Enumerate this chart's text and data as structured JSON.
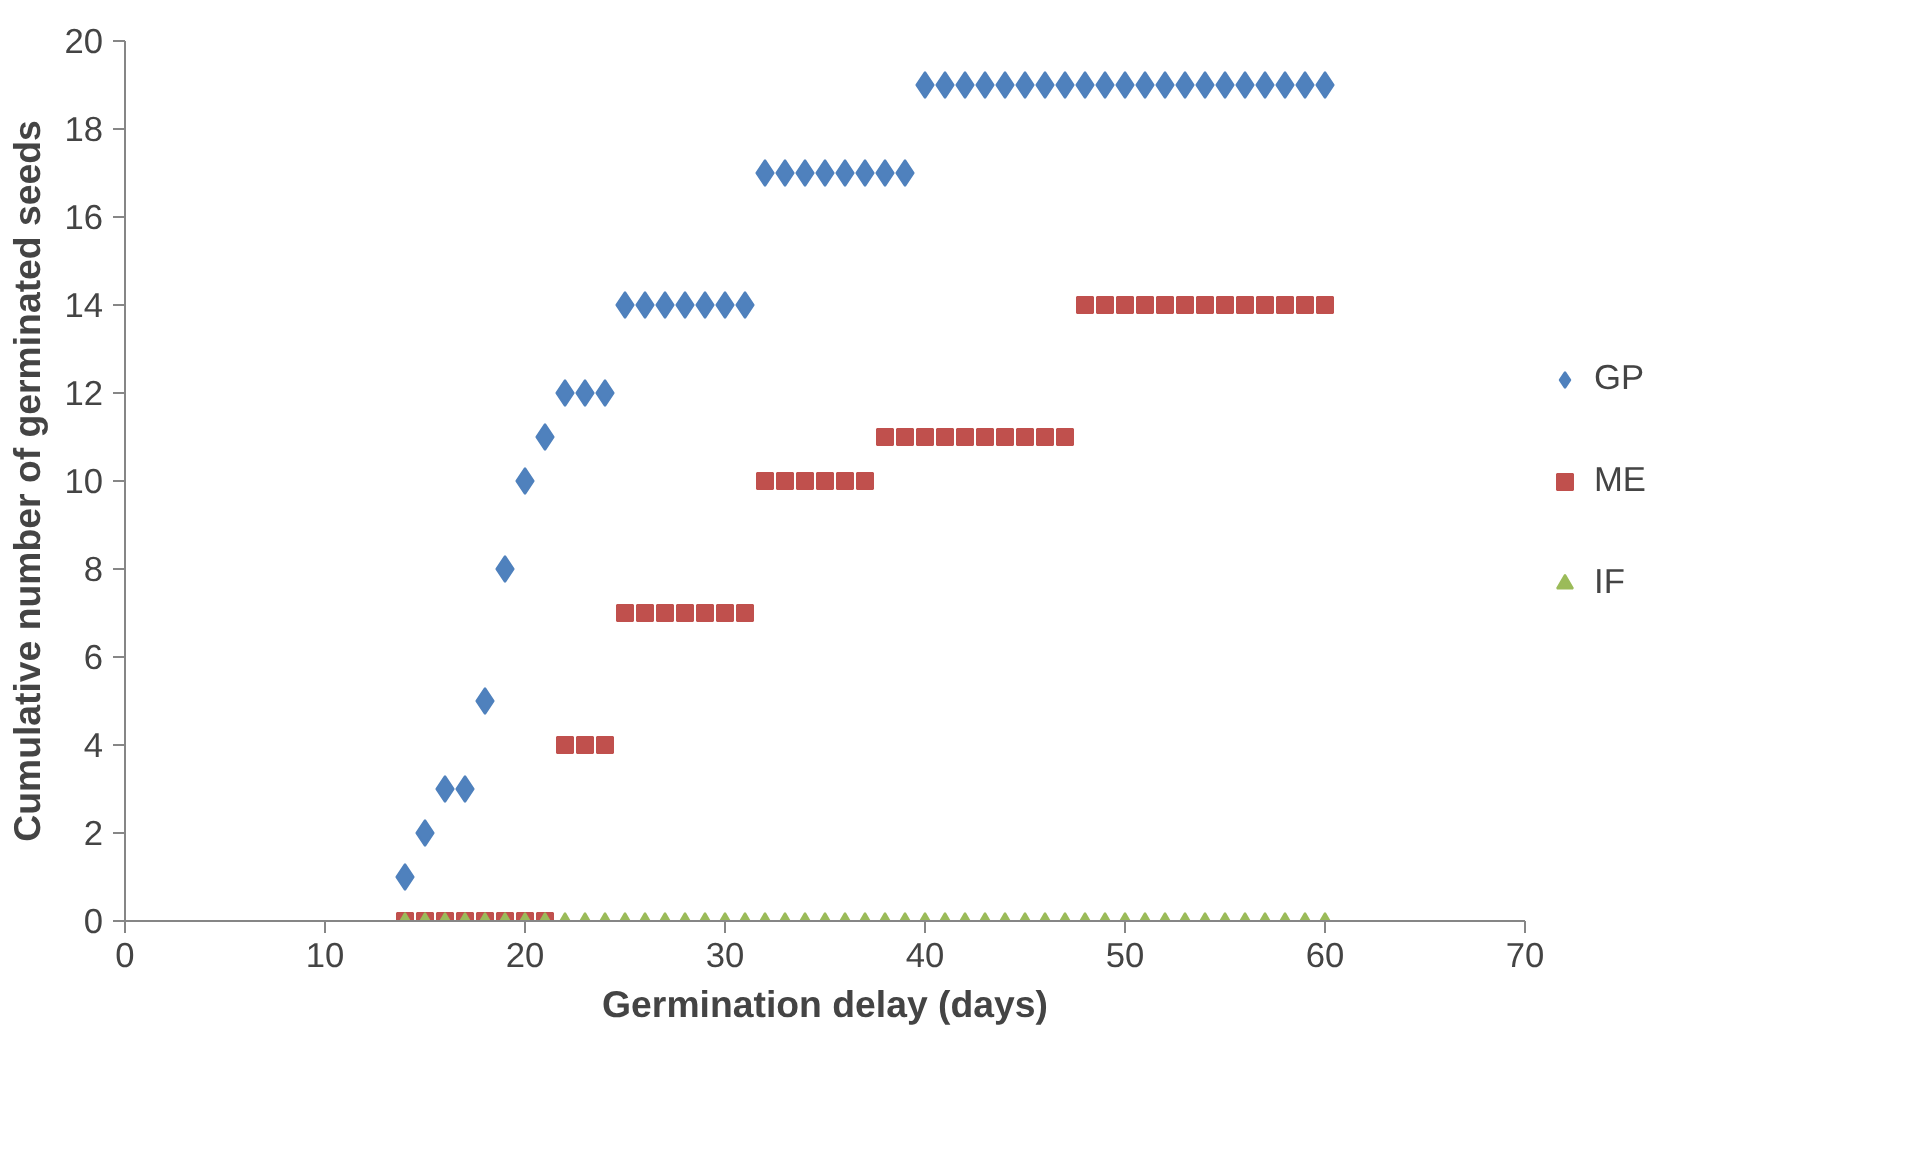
{
  "chart_data": {
    "type": "scatter",
    "xlabel": "Germination delay (days)",
    "ylabel": "Cumulative number of germinated seeds",
    "xlim": [
      0,
      70
    ],
    "xticks": [
      0,
      10,
      20,
      30,
      40,
      50,
      60,
      70
    ],
    "ylim": [
      0,
      20
    ],
    "yticks": [
      0,
      2,
      4,
      6,
      8,
      10,
      12,
      14,
      16,
      18,
      20
    ],
    "grid": false,
    "legend": "right",
    "series": [
      {
        "name": "GP",
        "color": "#4f81bd",
        "marker": "diamond",
        "x": [
          14,
          15,
          16,
          17,
          18,
          19,
          20,
          21,
          22,
          23,
          24,
          25,
          26,
          27,
          28,
          29,
          30,
          31,
          32,
          33,
          34,
          35,
          36,
          37,
          38,
          39,
          40,
          41,
          42,
          43,
          44,
          45,
          46,
          47,
          48,
          49,
          50,
          51,
          52,
          53,
          54,
          55,
          56,
          57,
          58,
          59,
          60
        ],
        "values": [
          1,
          2,
          3,
          3,
          5,
          8,
          10,
          11,
          12,
          12,
          12,
          14,
          14,
          14,
          14,
          14,
          14,
          14,
          17,
          17,
          17,
          17,
          17,
          17,
          17,
          17,
          19,
          19,
          19,
          19,
          19,
          19,
          19,
          19,
          19,
          19,
          19,
          19,
          19,
          19,
          19,
          19,
          19,
          19,
          19,
          19,
          19
        ]
      },
      {
        "name": "ME",
        "color": "#c0504d",
        "marker": "square",
        "x": [
          14,
          15,
          16,
          17,
          18,
          19,
          20,
          21,
          22,
          23,
          24,
          25,
          26,
          27,
          28,
          29,
          30,
          31,
          32,
          33,
          34,
          35,
          36,
          37,
          38,
          39,
          40,
          41,
          42,
          43,
          44,
          45,
          46,
          47,
          48,
          49,
          50,
          51,
          52,
          53,
          54,
          55,
          56,
          57,
          58,
          59,
          60
        ],
        "values": [
          0,
          0,
          0,
          0,
          0,
          0,
          0,
          0,
          4,
          4,
          4,
          7,
          7,
          7,
          7,
          7,
          7,
          7,
          10,
          10,
          10,
          10,
          10,
          10,
          11,
          11,
          11,
          11,
          11,
          11,
          11,
          11,
          11,
          11,
          14,
          14,
          14,
          14,
          14,
          14,
          14,
          14,
          14,
          14,
          14,
          14,
          14
        ]
      },
      {
        "name": "IF",
        "color": "#9bbb59",
        "marker": "triangle",
        "x": [
          14,
          15,
          16,
          17,
          18,
          19,
          20,
          21,
          22,
          23,
          24,
          25,
          26,
          27,
          28,
          29,
          30,
          31,
          32,
          33,
          34,
          35,
          36,
          37,
          38,
          39,
          40,
          41,
          42,
          43,
          44,
          45,
          46,
          47,
          48,
          49,
          50,
          51,
          52,
          53,
          54,
          55,
          56,
          57,
          58,
          59,
          60
        ],
        "values": [
          0,
          0,
          0,
          0,
          0,
          0,
          0,
          0,
          0,
          0,
          0,
          0,
          0,
          0,
          0,
          0,
          0,
          0,
          0,
          0,
          0,
          0,
          0,
          0,
          0,
          0,
          0,
          0,
          0,
          0,
          0,
          0,
          0,
          0,
          0,
          0,
          0,
          0,
          0,
          0,
          0,
          0,
          0,
          0,
          0,
          0,
          0
        ]
      }
    ]
  }
}
